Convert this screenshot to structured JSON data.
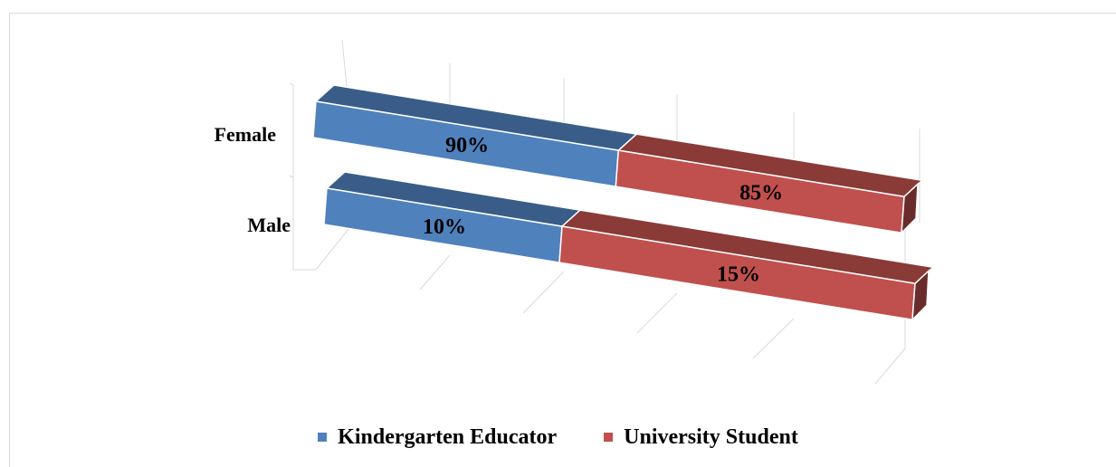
{
  "chart_data": {
    "type": "bar",
    "orientation": "horizontal",
    "stacked": true,
    "style": "3d",
    "categories": [
      "Female",
      "Male"
    ],
    "series": [
      {
        "name": "Kindergarten Educator",
        "values": [
          90,
          10
        ],
        "labels": [
          "90%",
          "10%"
        ],
        "color": "#4f81bd"
      },
      {
        "name": "University Student",
        "values": [
          85,
          15
        ],
        "labels": [
          "85%",
          "15%"
        ],
        "color": "#c0504d"
      }
    ],
    "legend": "bottom",
    "grid": true
  }
}
